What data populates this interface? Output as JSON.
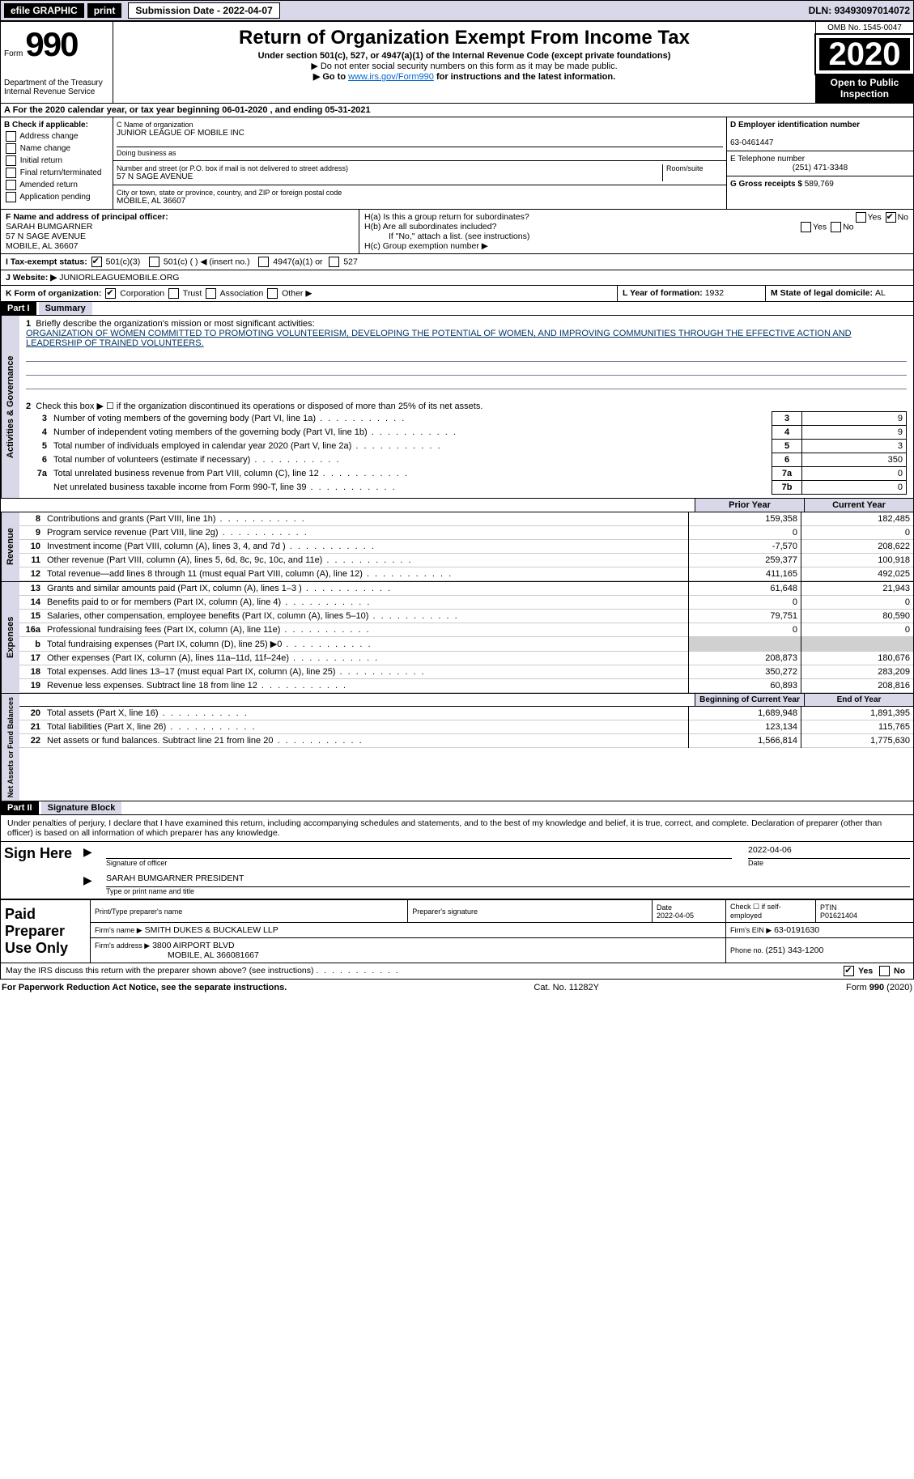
{
  "topbar": {
    "efile": "efile GRAPHIC",
    "print": "print",
    "sub_label": "Submission Date - ",
    "sub_date": "2022-04-07",
    "dln_label": "DLN: ",
    "dln": "93493097014072"
  },
  "header": {
    "form_word": "Form",
    "form_num": "990",
    "dept1": "Department of the Treasury",
    "dept2": "Internal Revenue Service",
    "title": "Return of Organization Exempt From Income Tax",
    "sub": "Under section 501(c), 527, or 4947(a)(1) of the Internal Revenue Code (except private foundations)",
    "note1": "▶ Do not enter social security numbers on this form as it may be made public.",
    "note2a": "▶ Go to ",
    "note2link": "www.irs.gov/Form990",
    "note2b": " for instructions and the latest information.",
    "omb": "OMB No. 1545-0047",
    "year": "2020",
    "inspect1": "Open to Public",
    "inspect2": "Inspection"
  },
  "sectionA": {
    "prefix": "A For the 2020 calendar year, or tax year beginning ",
    "begin": "06-01-2020",
    "mid": " , and ending ",
    "end": "05-31-2021"
  },
  "colB": {
    "title": "B Check if applicable:",
    "o1": "Address change",
    "o2": "Name change",
    "o3": "Initial return",
    "o4": "Final return/terminated",
    "o5": "Amended return",
    "o6": "Application pending"
  },
  "colC": {
    "name_lbl": "C Name of organization",
    "name": "JUNIOR LEAGUE OF MOBILE INC",
    "dba_lbl": "Doing business as",
    "addr_lbl": "Number and street (or P.O. box if mail is not delivered to street address)",
    "room_lbl": "Room/suite",
    "addr": "57 N SAGE AVENUE",
    "city_lbl": "City or town, state or province, country, and ZIP or foreign postal code",
    "city": "MOBILE, AL  36607"
  },
  "colD": {
    "ein_lbl": "D Employer identification number",
    "ein": "63-0461447",
    "tel_lbl": "E Telephone number",
    "tel": "(251) 471-3348",
    "gross_lbl": "G Gross receipts $ ",
    "gross": "589,769"
  },
  "rowF": {
    "f_lbl": "F Name and address of principal officer:",
    "f_name": "SARAH BUMGARNER",
    "f_addr1": "57 N SAGE AVENUE",
    "f_addr2": "MOBILE, AL  36607",
    "ha": "H(a)  Is this a group return for subordinates?",
    "hb": "H(b)  Are all subordinates included?",
    "hb_note": "If \"No,\" attach a list. (see instructions)",
    "hc": "H(c)  Group exemption number ▶",
    "yes": "Yes",
    "no": "No"
  },
  "rowI": {
    "lbl": "I   Tax-exempt status:",
    "o1": "501(c)(3)",
    "o2": "501(c) (  ) ◀ (insert no.)",
    "o3": "4947(a)(1) or",
    "o4": "527"
  },
  "rowJ": {
    "lbl": "J   Website: ▶",
    "val": "JUNIORLEAGUEMOBILE.ORG"
  },
  "rowK": {
    "lbl": "K Form of organization:",
    "o1": "Corporation",
    "o2": "Trust",
    "o3": "Association",
    "o4": "Other ▶",
    "l_lbl": "L Year of formation: ",
    "l_val": "1932",
    "m_lbl": "M State of legal domicile: ",
    "m_val": "AL"
  },
  "part1": {
    "hdr": "Part I",
    "title": "Summary",
    "q1_lbl": "1",
    "q1": "Briefly describe the organization's mission or most significant activities:",
    "q1_text": "ORGANIZATION OF WOMEN COMMITTED TO PROMOTING VOLUNTEERISM, DEVELOPING THE POTENTIAL OF WOMEN, AND IMPROVING COMMUNITIES THROUGH THE EFFECTIVE ACTION AND LEADERSHIP OF TRAINED VOLUNTEERS.",
    "q2_lbl": "2",
    "q2": "Check this box ▶ ☐ if the organization discontinued its operations or disposed of more than 25% of its net assets.",
    "rows": [
      {
        "n": "3",
        "t": "Number of voting members of the governing body (Part VI, line 1a)",
        "box": "3",
        "v": "9"
      },
      {
        "n": "4",
        "t": "Number of independent voting members of the governing body (Part VI, line 1b)",
        "box": "4",
        "v": "9"
      },
      {
        "n": "5",
        "t": "Total number of individuals employed in calendar year 2020 (Part V, line 2a)",
        "box": "5",
        "v": "3"
      },
      {
        "n": "6",
        "t": "Total number of volunteers (estimate if necessary)",
        "box": "6",
        "v": "350"
      },
      {
        "n": "7a",
        "t": "Total unrelated business revenue from Part VIII, column (C), line 12",
        "box": "7a",
        "v": "0"
      },
      {
        "n": "",
        "t": "Net unrelated business taxable income from Form 990-T, line 39",
        "box": "7b",
        "v": "0"
      }
    ],
    "col_prior": "Prior Year",
    "col_curr": "Current Year",
    "revenue": [
      {
        "n": "8",
        "t": "Contributions and grants (Part VIII, line 1h)",
        "p": "159,358",
        "c": "182,485"
      },
      {
        "n": "9",
        "t": "Program service revenue (Part VIII, line 2g)",
        "p": "0",
        "c": "0"
      },
      {
        "n": "10",
        "t": "Investment income (Part VIII, column (A), lines 3, 4, and 7d )",
        "p": "-7,570",
        "c": "208,622"
      },
      {
        "n": "11",
        "t": "Other revenue (Part VIII, column (A), lines 5, 6d, 8c, 9c, 10c, and 11e)",
        "p": "259,377",
        "c": "100,918"
      },
      {
        "n": "12",
        "t": "Total revenue—add lines 8 through 11 (must equal Part VIII, column (A), line 12)",
        "p": "411,165",
        "c": "492,025"
      }
    ],
    "expenses": [
      {
        "n": "13",
        "t": "Grants and similar amounts paid (Part IX, column (A), lines 1–3 )",
        "p": "61,648",
        "c": "21,943"
      },
      {
        "n": "14",
        "t": "Benefits paid to or for members (Part IX, column (A), line 4)",
        "p": "0",
        "c": "0"
      },
      {
        "n": "15",
        "t": "Salaries, other compensation, employee benefits (Part IX, column (A), lines 5–10)",
        "p": "79,751",
        "c": "80,590"
      },
      {
        "n": "16a",
        "t": "Professional fundraising fees (Part IX, column (A), line 11e)",
        "p": "0",
        "c": "0"
      },
      {
        "n": "b",
        "t": "Total fundraising expenses (Part IX, column (D), line 25) ▶0",
        "p": "",
        "c": "",
        "shaded": true
      },
      {
        "n": "17",
        "t": "Other expenses (Part IX, column (A), lines 11a–11d, 11f–24e)",
        "p": "208,873",
        "c": "180,676"
      },
      {
        "n": "18",
        "t": "Total expenses. Add lines 13–17 (must equal Part IX, column (A), line 25)",
        "p": "350,272",
        "c": "283,209"
      },
      {
        "n": "19",
        "t": "Revenue less expenses. Subtract line 18 from line 12",
        "p": "60,893",
        "c": "208,816"
      }
    ],
    "col_begin": "Beginning of Current Year",
    "col_end": "End of Year",
    "net": [
      {
        "n": "20",
        "t": "Total assets (Part X, line 16)",
        "p": "1,689,948",
        "c": "1,891,395"
      },
      {
        "n": "21",
        "t": "Total liabilities (Part X, line 26)",
        "p": "123,134",
        "c": "115,765"
      },
      {
        "n": "22",
        "t": "Net assets or fund balances. Subtract line 21 from line 20",
        "p": "1,566,814",
        "c": "1,775,630"
      }
    ],
    "vlabel_gov": "Activities & Governance",
    "vlabel_rev": "Revenue",
    "vlabel_exp": "Expenses",
    "vlabel_net": "Net Assets or Fund Balances"
  },
  "part2": {
    "hdr": "Part II",
    "title": "Signature Block",
    "decl": "Under penalties of perjury, I declare that I have examined this return, including accompanying schedules and statements, and to the best of my knowledge and belief, it is true, correct, and complete. Declaration of preparer (other than officer) is based on all information of which preparer has any knowledge.",
    "sign_here": "Sign Here",
    "sig_officer": "Signature of officer",
    "sig_date": "2022-04-06",
    "date_lbl": "Date",
    "sig_name": "SARAH BUMGARNER  PRESIDENT",
    "sig_type_lbl": "Type or print name and title",
    "paid": "Paid Preparer Use Only",
    "p_name_lbl": "Print/Type preparer's name",
    "p_sig_lbl": "Preparer's signature",
    "p_date_lbl": "Date",
    "p_date": "2022-04-05",
    "p_check_lbl": "Check ☐ if self-employed",
    "ptin_lbl": "PTIN",
    "ptin": "P01621404",
    "firm_name_lbl": "Firm's name   ▶",
    "firm_name": "SMITH DUKES & BUCKALEW LLP",
    "firm_ein_lbl": "Firm's EIN ▶",
    "firm_ein": "63-0191630",
    "firm_addr_lbl": "Firm's address ▶",
    "firm_addr1": "3800 AIRPORT BLVD",
    "firm_addr2": "MOBILE, AL  366081667",
    "firm_phone_lbl": "Phone no. ",
    "firm_phone": "(251) 343-1200",
    "may_discuss": "May the IRS discuss this return with the preparer shown above? (see instructions)"
  },
  "footer": {
    "left": "For Paperwork Reduction Act Notice, see the separate instructions.",
    "mid": "Cat. No. 11282Y",
    "right": "Form 990 (2020)"
  }
}
